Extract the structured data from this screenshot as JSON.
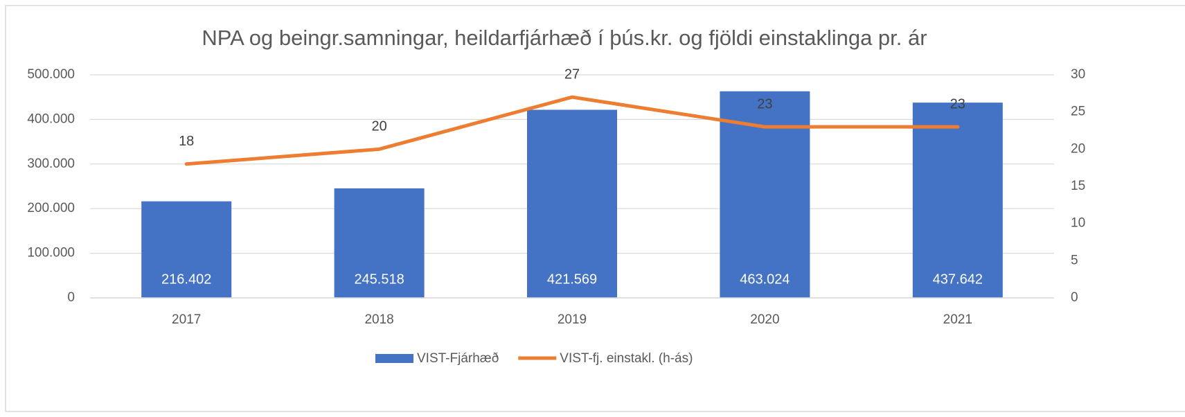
{
  "chart_data": {
    "type": "bar-line",
    "title": "NPA og beingr.samningar, heildarfjárhæð í þús.kr. og fjöldi einstaklinga pr. ár",
    "categories": [
      "2017",
      "2018",
      "2019",
      "2020",
      "2021"
    ],
    "series": [
      {
        "name": "VIST-Fjárhæð",
        "type": "bar",
        "color": "#4472c4",
        "values": [
          216402,
          245518,
          421569,
          463024,
          437642
        ],
        "value_labels": [
          "216.402",
          "245.518",
          "421.569",
          "463.024",
          "437.642"
        ]
      },
      {
        "name": "VIST-fj. einstakl. (h-ás)",
        "type": "line",
        "axis": "y2",
        "color": "#ed7d31",
        "values": [
          18,
          20,
          27,
          23,
          23
        ]
      }
    ],
    "ylim": [
      0,
      500000
    ],
    "yticks": [
      0,
      {
        "value": 100000,
        "label": "100.000"
      },
      {
        "value": 200000,
        "label": "200.000"
      },
      {
        "value": 300000,
        "label": "300.000"
      },
      {
        "value": 400000,
        "label": "400.000"
      },
      {
        "value": 500000,
        "label": "500.000"
      }
    ],
    "y2lim": [
      0,
      30
    ],
    "y2ticks": [
      0,
      5,
      10,
      15,
      20,
      25,
      30
    ],
    "grid": true,
    "legend": "bottom"
  }
}
